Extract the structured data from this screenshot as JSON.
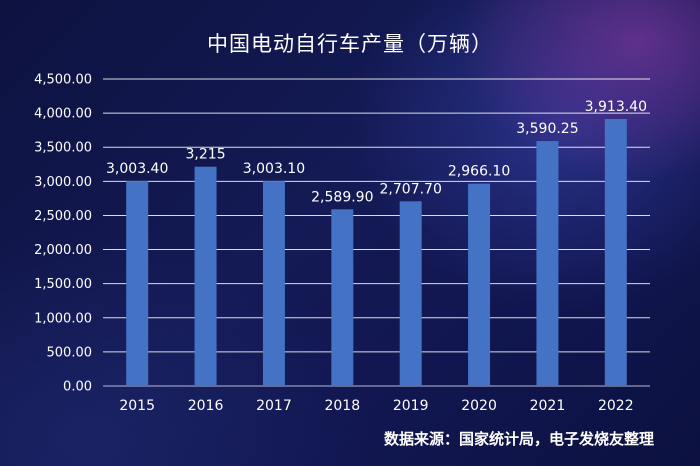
{
  "chart_data": {
    "type": "bar",
    "title": "中国电动自行车产量（万辆）",
    "categories": [
      "2015",
      "2016",
      "2017",
      "2018",
      "2019",
      "2020",
      "2021",
      "2022"
    ],
    "values": [
      3003.4,
      3215,
      3003.1,
      2589.9,
      2707.7,
      2966.1,
      3590.25,
      3913.4
    ],
    "value_labels": [
      "3,003.40",
      "3,215",
      "3,003.10",
      "2,589.90",
      "2,707.70",
      "2,966.10",
      "3,590.25",
      "3,913.40"
    ],
    "yticks": [
      "0.00",
      "500.00",
      "1,000.00",
      "1,500.00",
      "2,000.00",
      "2,500.00",
      "3,000.00",
      "3,500.00",
      "4,000.00",
      "4,500.00"
    ],
    "ylim": [
      0,
      4500
    ],
    "grid": true,
    "bar_color": "#4472c4",
    "source": "数据来源：国家统计局，电子发烧友整理"
  }
}
